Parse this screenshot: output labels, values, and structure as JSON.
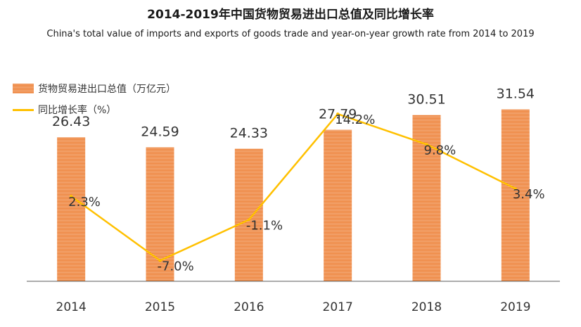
{
  "title": "2014-2019年中国货物贸易进出口总值及同比增长率",
  "subtitle": "China's total value of imports and exports of goods trade and year-on-year growth rate from 2014 to 2019",
  "colors": {
    "bar": "#ed7d31",
    "bar_light": "#f4b184",
    "line": "#ffc000",
    "axis": "#595959",
    "text": "#333333"
  },
  "chart_data": {
    "type": "bar",
    "categories": [
      "2014",
      "2015",
      "2016",
      "2017",
      "2018",
      "2019"
    ],
    "series": [
      {
        "name": "货物贸易进出口总值（万亿元）",
        "type": "bar",
        "values": [
          26.43,
          24.59,
          24.33,
          27.79,
          30.51,
          31.54
        ]
      },
      {
        "name": "同比增长率（%）",
        "type": "line",
        "values": [
          2.3,
          -7.0,
          -1.1,
          14.2,
          9.8,
          3.4
        ]
      }
    ],
    "bar_labels": [
      "26.43",
      "24.59",
      "24.33",
      "27.79",
      "30.51",
      "31.54"
    ],
    "line_labels": [
      "2.3%",
      "-7.0%",
      "-1.1%",
      "14.2%",
      "9.8%",
      "3.4%"
    ],
    "ylim_bar": [
      0,
      40
    ],
    "ylim_line": [
      -10,
      20
    ],
    "grid": false,
    "legend": "top-left"
  }
}
